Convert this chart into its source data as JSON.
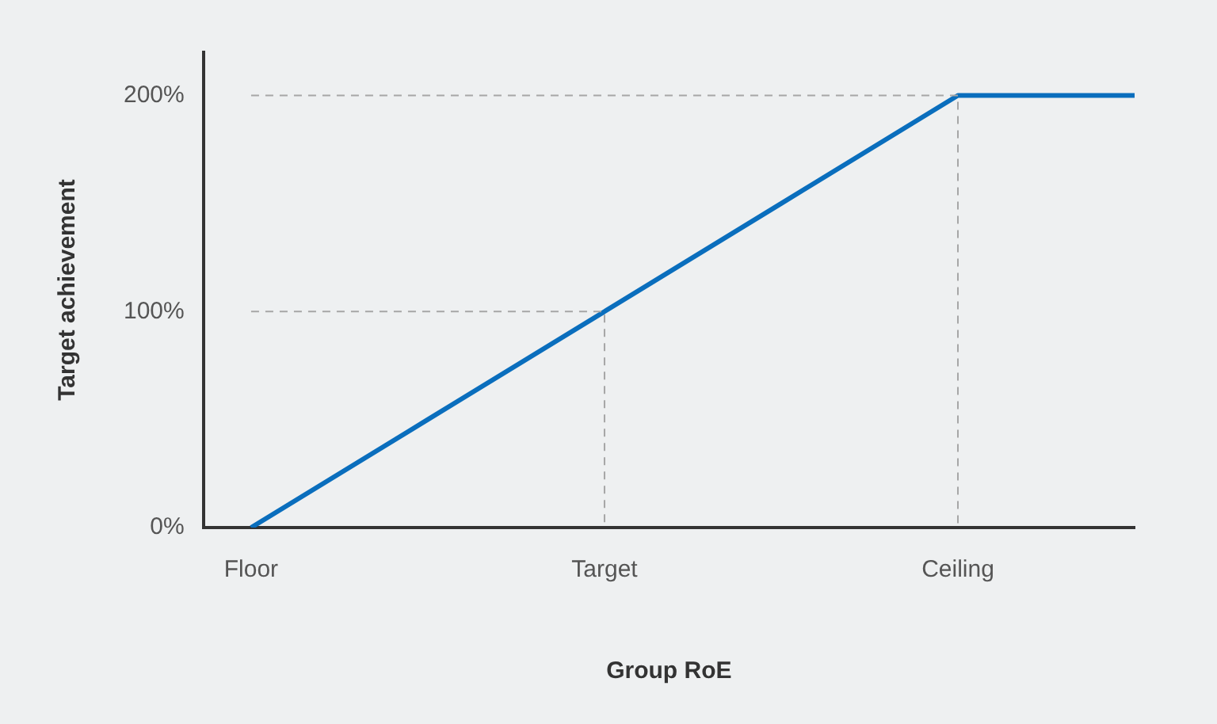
{
  "chart_data": {
    "type": "line",
    "xlabel": "Group RoE",
    "ylabel": "Target achievement",
    "categories": [
      "Floor",
      null,
      "Target",
      null,
      "Ceiling",
      null
    ],
    "ylim": [
      0,
      220
    ],
    "yticks": [
      {
        "value": 0,
        "label": "0%"
      },
      {
        "value": 100,
        "label": "100%"
      },
      {
        "value": 200,
        "label": "200%"
      }
    ],
    "grid": false,
    "legend": false,
    "marker": "none",
    "series": [
      {
        "color": "#a6a6a6",
        "line_style": "dashed",
        "x": [
          "Floor",
          "Target",
          "Target"
        ],
        "values": [
          100,
          100,
          0
        ]
      },
      {
        "color": "#a6a6a6",
        "line_style": "dashed",
        "x": [
          "Floor",
          "Ceiling",
          "Ceiling"
        ],
        "values": [
          200,
          200,
          0
        ]
      },
      {
        "color": "#0a6ebd",
        "line_style": "solid",
        "values": [
          0,
          50,
          100,
          150,
          200,
          200
        ]
      }
    ]
  }
}
